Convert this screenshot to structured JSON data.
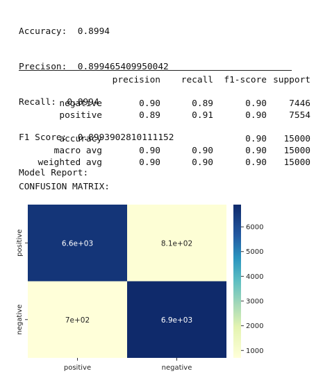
{
  "metrics": [
    "Accuracy:  0.8994",
    "Precison:  0.899465409950042",
    "Recall:  0.8994",
    "F1 Score:  0.8993902810111152",
    "Model Report:"
  ],
  "report": {
    "headers": [
      "precision",
      "recall",
      "f1-score",
      "support"
    ],
    "rows": [
      {
        "label": "negative",
        "precision": "0.90",
        "recall": "0.89",
        "f1": "0.90",
        "support": "7446"
      },
      {
        "label": "positive",
        "precision": "0.89",
        "recall": "0.91",
        "f1": "0.90",
        "support": "7554"
      },
      {
        "label": "accuracy",
        "precision": "",
        "recall": "",
        "f1": "0.90",
        "support": "15000"
      },
      {
        "label": "macro avg",
        "precision": "0.90",
        "recall": "0.90",
        "f1": "0.90",
        "support": "15000"
      },
      {
        "label": "weighted avg",
        "precision": "0.90",
        "recall": "0.90",
        "f1": "0.90",
        "support": "15000"
      }
    ]
  },
  "confusion_title": "CONFUSION MATRIX:",
  "chart_data": {
    "type": "heatmap",
    "x_categories": [
      "positive",
      "negative"
    ],
    "y_categories": [
      "positive",
      "negative"
    ],
    "values": [
      [
        6600,
        810
      ],
      [
        700,
        6900
      ]
    ],
    "annotations": [
      [
        "6.6e+03",
        "8.1e+02"
      ],
      [
        "7e+02",
        "6.9e+03"
      ]
    ],
    "colormap": "YlGnBu",
    "colorbar_ticks": [
      "1000",
      "2000",
      "3000",
      "4000",
      "5000",
      "6000"
    ],
    "colorbar_range": [
      700,
      6900
    ],
    "colors": {
      "low": "#ffffd9",
      "high": "#0f2a6b"
    }
  }
}
